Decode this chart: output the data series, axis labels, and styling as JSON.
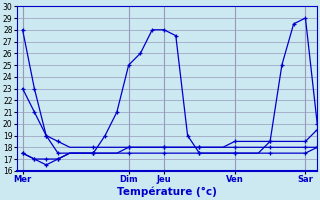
{
  "title": "Température (°c)",
  "background_color": "#cce8f0",
  "grid_color": "#9999bb",
  "line_color": "#0000cc",
  "x_tick_labels": [
    "Mer",
    "Dim",
    "Jeu",
    "Ven",
    "Sar"
  ],
  "x_tick_positions": [
    0,
    9,
    12,
    18,
    24
  ],
  "ylim": [
    16,
    30
  ],
  "yticks": [
    16,
    17,
    18,
    19,
    20,
    21,
    22,
    23,
    24,
    25,
    26,
    27,
    28,
    29,
    30
  ],
  "xlim": [
    -0.5,
    25
  ],
  "series": [
    {
      "y": [
        28,
        23,
        19,
        17.5,
        17.5,
        17.5,
        17.5,
        19,
        21,
        25,
        26,
        28,
        28,
        27.5,
        19,
        17.5,
        17.5,
        17.5,
        17.5,
        17.5,
        17.5,
        18.5,
        25,
        28.5,
        29,
        20
      ],
      "markers": [
        0,
        1,
        2,
        3,
        6,
        7,
        8,
        9,
        10,
        11,
        12,
        13,
        14,
        15,
        18,
        21,
        22,
        23,
        24,
        25
      ]
    },
    {
      "y": [
        23,
        21,
        19,
        18.5,
        18,
        18,
        18,
        18,
        18,
        18,
        18,
        18,
        18,
        18,
        18,
        18,
        18,
        18,
        18.5,
        18.5,
        18.5,
        18.5,
        18.5,
        18.5,
        18.5,
        19.5
      ],
      "markers": [
        0,
        1,
        2,
        3,
        6,
        9,
        12,
        15,
        18,
        21,
        24,
        25
      ]
    },
    {
      "y": [
        17.5,
        17,
        17,
        17,
        17.5,
        17.5,
        17.5,
        17.5,
        17.5,
        18,
        18,
        18,
        18,
        18,
        18,
        18,
        18,
        18,
        18,
        18,
        18,
        18,
        18,
        18,
        18,
        18
      ],
      "markers": [
        0,
        1,
        2,
        3,
        6,
        9,
        12,
        15,
        18,
        21,
        24,
        25
      ]
    },
    {
      "y": [
        17.5,
        17,
        16.5,
        17,
        17.5,
        17.5,
        17.5,
        17.5,
        17.5,
        17.5,
        17.5,
        17.5,
        17.5,
        17.5,
        17.5,
        17.5,
        17.5,
        17.5,
        17.5,
        17.5,
        17.5,
        17.5,
        17.5,
        17.5,
        17.5,
        18
      ],
      "markers": [
        0,
        1,
        2,
        3,
        6,
        9,
        12,
        15,
        18,
        21,
        24,
        25
      ]
    }
  ]
}
